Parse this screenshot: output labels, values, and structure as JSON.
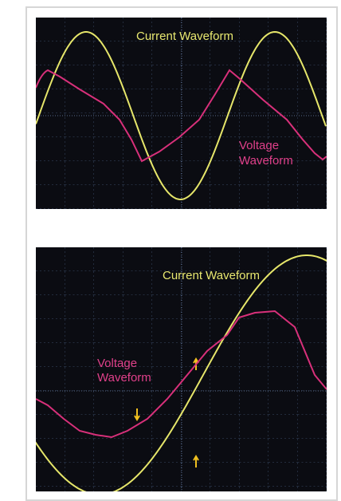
{
  "panels": [
    {
      "current_label": "Current Waveform",
      "voltage_label": [
        "Voltage",
        "Waveform"
      ]
    },
    {
      "current_label": "Current Waveform",
      "voltage_label": [
        "Voltage",
        "Waveform"
      ]
    }
  ]
}
